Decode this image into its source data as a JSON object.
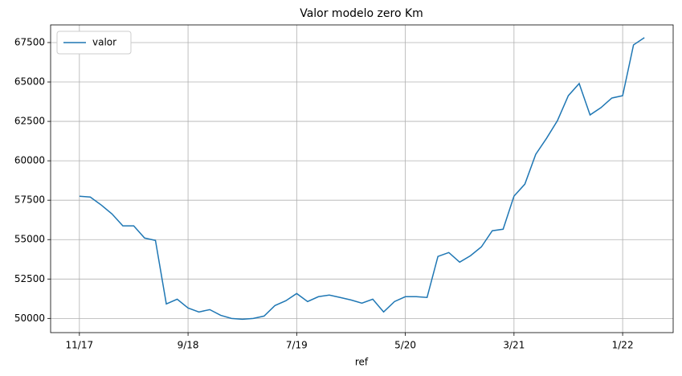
{
  "chart_data": {
    "type": "line",
    "title": "Valor modelo zero Km",
    "xlabel": "ref",
    "categories": [
      "11/17",
      null,
      null,
      null,
      null,
      null,
      null,
      null,
      null,
      null,
      "9/18",
      null,
      null,
      null,
      null,
      null,
      null,
      null,
      null,
      null,
      "7/19",
      null,
      null,
      null,
      null,
      null,
      null,
      null,
      null,
      null,
      "5/20",
      null,
      null,
      null,
      null,
      null,
      null,
      null,
      null,
      null,
      "3/21",
      null,
      null,
      null,
      null,
      null,
      null,
      null,
      null,
      null,
      "1/22",
      null,
      null
    ],
    "series": [
      {
        "name": "valor",
        "color": "#1f77b4",
        "values": [
          57750,
          57700,
          57200,
          56630,
          55870,
          55870,
          55100,
          54950,
          50920,
          51220,
          50660,
          50410,
          50560,
          50200,
          50000,
          49950,
          50000,
          50150,
          50820,
          51120,
          51580,
          51070,
          51380,
          51480,
          51330,
          51170,
          50970,
          51220,
          50410,
          51070,
          51380,
          51380,
          51330,
          53930,
          54180,
          53570,
          53980,
          54540,
          55560,
          55660,
          57760,
          58520,
          60410,
          61430,
          62550,
          64130,
          64900,
          62910,
          63370,
          63980,
          64130,
          67350,
          67810
        ]
      }
    ],
    "ylim": [
      49100,
      68620
    ],
    "yticks": [
      50000,
      52500,
      55000,
      57500,
      60000,
      62500,
      65000,
      67500
    ],
    "grid": true,
    "legend": "upper left"
  }
}
